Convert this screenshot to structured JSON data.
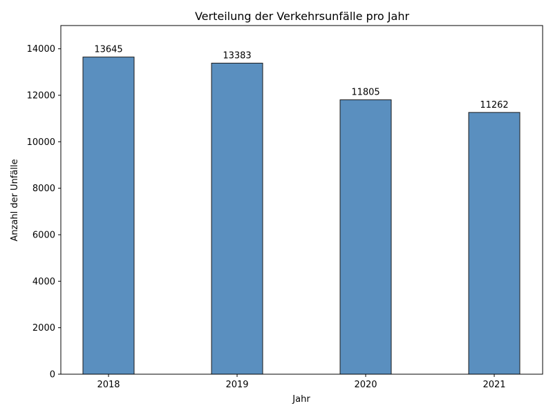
{
  "chart_data": {
    "type": "bar",
    "title": "Verteilung der Verkehrsunfälle pro Jahr",
    "xlabel": "Jahr",
    "ylabel": "Anzahl der Unfälle",
    "categories": [
      "2018",
      "2019",
      "2020",
      "2021"
    ],
    "values": [
      13645,
      13383,
      11805,
      11262
    ],
    "data_labels": [
      "13645",
      "13383",
      "11805",
      "11262"
    ],
    "y_ticks": [
      0,
      2000,
      4000,
      6000,
      8000,
      10000,
      12000,
      14000
    ],
    "ylim": [
      0,
      15000
    ],
    "grid": false,
    "legend": "none",
    "bar_color": "#5a8fbf",
    "edge_color": "#1a1a1a"
  }
}
